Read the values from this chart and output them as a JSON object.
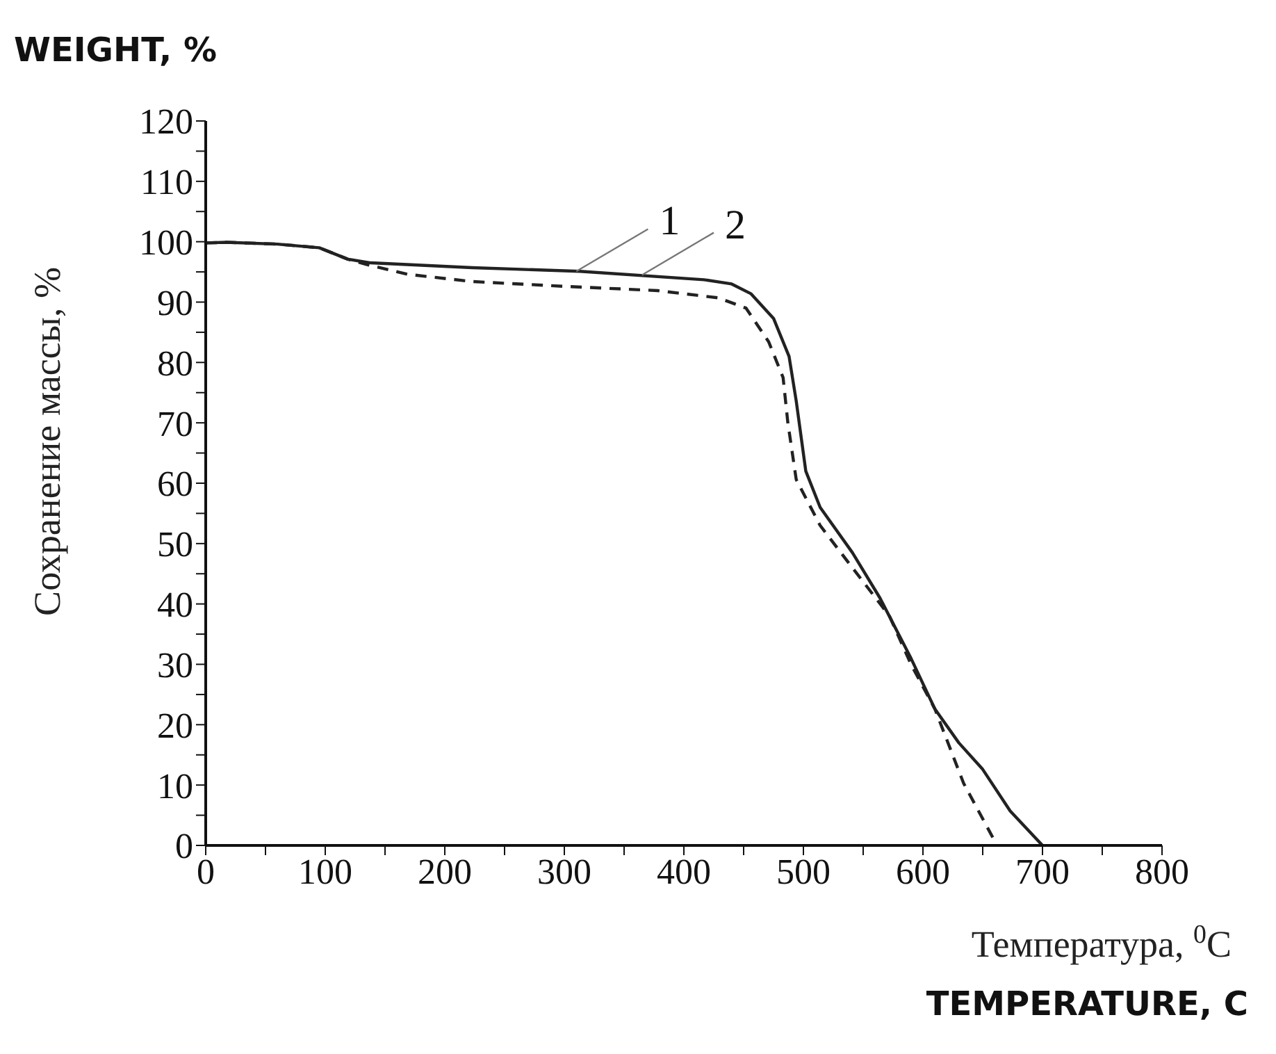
{
  "chart_data": {
    "type": "line",
    "xlabel": "Температура, $^{0}$C",
    "ylabel": "Сохранение массы, %",
    "annotations": [
      "WEIGHT, %",
      "TEMPERATURE, C",
      {
        "text": "1",
        "x": 310,
        "y": 95.1
      },
      {
        "text": "2",
        "x": 365,
        "y": 94.5
      }
    ],
    "marker": "none",
    "xlim": [
      0,
      800
    ],
    "ylim": [
      0,
      120
    ],
    "xticks": [
      0,
      {
        "value": 50,
        "label": null
      },
      100,
      {
        "value": 150,
        "label": null
      },
      200,
      {
        "value": 250,
        "label": null
      },
      300,
      {
        "value": 350,
        "label": null
      },
      400,
      {
        "value": 450,
        "label": null
      },
      500,
      {
        "value": 550,
        "label": null
      },
      600,
      {
        "value": 650,
        "label": null
      },
      700,
      {
        "value": 750,
        "label": null
      },
      800
    ],
    "yticks": [
      0,
      {
        "value": 5,
        "label": null
      },
      10,
      {
        "value": 15,
        "label": null
      },
      20,
      {
        "value": 25,
        "label": null
      },
      30,
      {
        "value": 35,
        "label": null
      },
      40,
      {
        "value": 45,
        "label": null
      },
      50,
      {
        "value": 55,
        "label": null
      },
      60,
      {
        "value": 65,
        "label": null
      },
      70,
      {
        "value": 75,
        "label": null
      },
      80,
      {
        "value": 85,
        "label": null
      },
      90,
      {
        "value": 95,
        "label": null
      },
      100,
      {
        "value": 105,
        "label": null
      },
      110,
      {
        "value": 115,
        "label": null
      },
      120
    ],
    "series": [
      {
        "color": "#222222",
        "line_style": "solid",
        "x": [
          0,
          17,
          60,
          95,
          119,
          138,
          223,
          313,
          417,
          440,
          456,
          475,
          488,
          494,
          502,
          514,
          541,
          564,
          590,
          610,
          630,
          650,
          673,
          700
        ],
        "values": [
          99.8,
          99.9,
          99.6,
          99,
          97.1,
          96.5,
          95.7,
          95.1,
          93.7,
          93,
          91.4,
          87.3,
          81,
          73.6,
          62,
          56,
          48.5,
          41,
          31,
          22.6,
          17,
          12.6,
          5.7,
          0
        ]
      },
      {
        "color": "#222222",
        "line_style": "dashed",
        "x": [
          0,
          17,
          60,
          95,
          119,
          135,
          169,
          223,
          301,
          378,
          429,
          452,
          471,
          483,
          487,
          494,
          514,
          541,
          572,
          590,
          610,
          634,
          662
        ],
        "values": [
          99.8,
          99.9,
          99.6,
          99,
          97.1,
          96.2,
          94.6,
          93.4,
          92.6,
          91.9,
          90.7,
          89,
          83.4,
          77.5,
          70,
          60.6,
          53,
          46,
          38,
          30,
          22.6,
          10.3,
          0
        ]
      }
    ]
  }
}
